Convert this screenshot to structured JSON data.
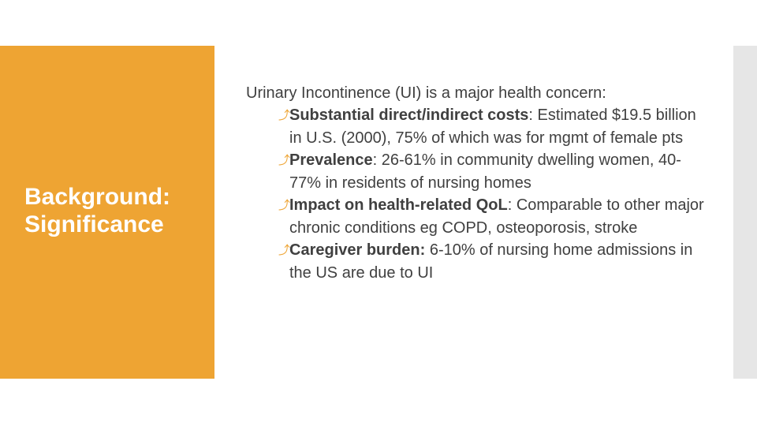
{
  "slide": {
    "title_line1": "Background:",
    "title_line2": "Significance",
    "lead": "Urinary Incontinence (UI) is a major health concern:",
    "bullets": [
      {
        "icon": "angled-arrow-icon",
        "label": "Substantial direct/indirect costs",
        "text": ": Estimated $19.5 billion in U.S. (2000), 75% of which was for mgmt of female pts"
      },
      {
        "icon": "angled-arrow-icon",
        "label": "Prevalence",
        "text": ": 26-61% in community dwelling women, 40-77% in residents of nursing homes"
      },
      {
        "icon": "angled-arrow-icon",
        "label": "Impact on health-related QoL",
        "text": ": Comparable to other major chronic conditions eg COPD, osteoporosis, stroke"
      },
      {
        "icon": "angled-arrow-icon",
        "label": "Caregiver burden:",
        "text": " 6-10% of nursing home admissions in the US are due to UI"
      }
    ]
  },
  "colors": {
    "accent_orange": "#EEA433",
    "side_bar_gray": "#E6E6E6",
    "body_text": "#404040",
    "title_text": "#FFFFFF"
  }
}
